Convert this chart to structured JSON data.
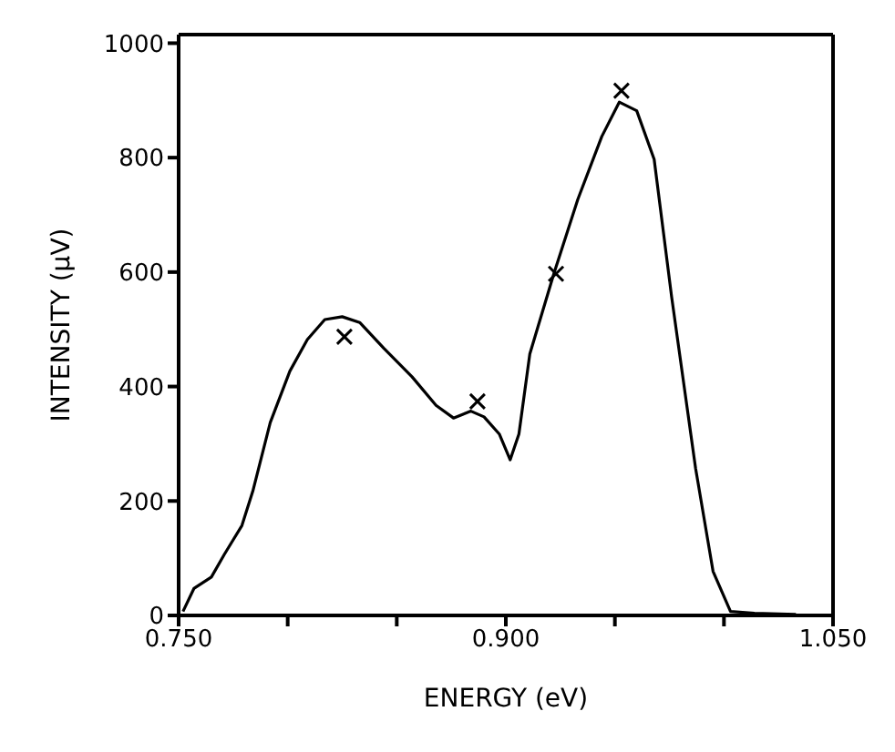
{
  "chart_data": {
    "type": "line",
    "xlabel": "ENERGY (eV)",
    "ylabel": "INTENSITY (μV)",
    "xlim": [
      0.75,
      1.05
    ],
    "ylim": [
      0,
      1015
    ],
    "xticks": [
      {
        "value": 0.75,
        "label": "0.750"
      },
      {
        "value": 0.8,
        "label": null
      },
      {
        "value": 0.85,
        "label": null
      },
      {
        "value": 0.9,
        "label": "0.900"
      },
      {
        "value": 0.95,
        "label": null
      },
      {
        "value": 1.0,
        "label": null
      },
      {
        "value": 1.05,
        "label": "1.050"
      }
    ],
    "yticks": [
      0,
      200,
      400,
      600,
      800,
      1000
    ],
    "series": [
      {
        "color": "#000000",
        "marker": "none",
        "x": [
          0.752,
          0.757,
          0.765,
          0.771,
          0.779,
          0.784,
          0.792,
          0.801,
          0.809,
          0.817,
          0.825,
          0.833,
          0.844,
          0.857,
          0.868,
          0.876,
          0.884,
          0.89,
          0.897,
          0.902,
          0.906,
          0.911,
          0.922,
          0.933,
          0.944,
          0.952,
          0.96,
          0.968,
          0.976,
          0.987,
          0.995,
          1.003,
          1.014,
          1.033
        ],
        "values": [
          7,
          47,
          67,
          107,
          157,
          217,
          337,
          427,
          482,
          517,
          522,
          512,
          467,
          417,
          367,
          345,
          357,
          347,
          317,
          272,
          317,
          457,
          597,
          727,
          837,
          897,
          882,
          797,
          557,
          257,
          77,
          7,
          4,
          2
        ]
      },
      {
        "type": "scatter",
        "color": "#000000",
        "marker": "cross",
        "x": [
          0.826,
          0.887,
          0.923,
          0.953
        ],
        "values": [
          487,
          374,
          597,
          917
        ]
      }
    ]
  }
}
